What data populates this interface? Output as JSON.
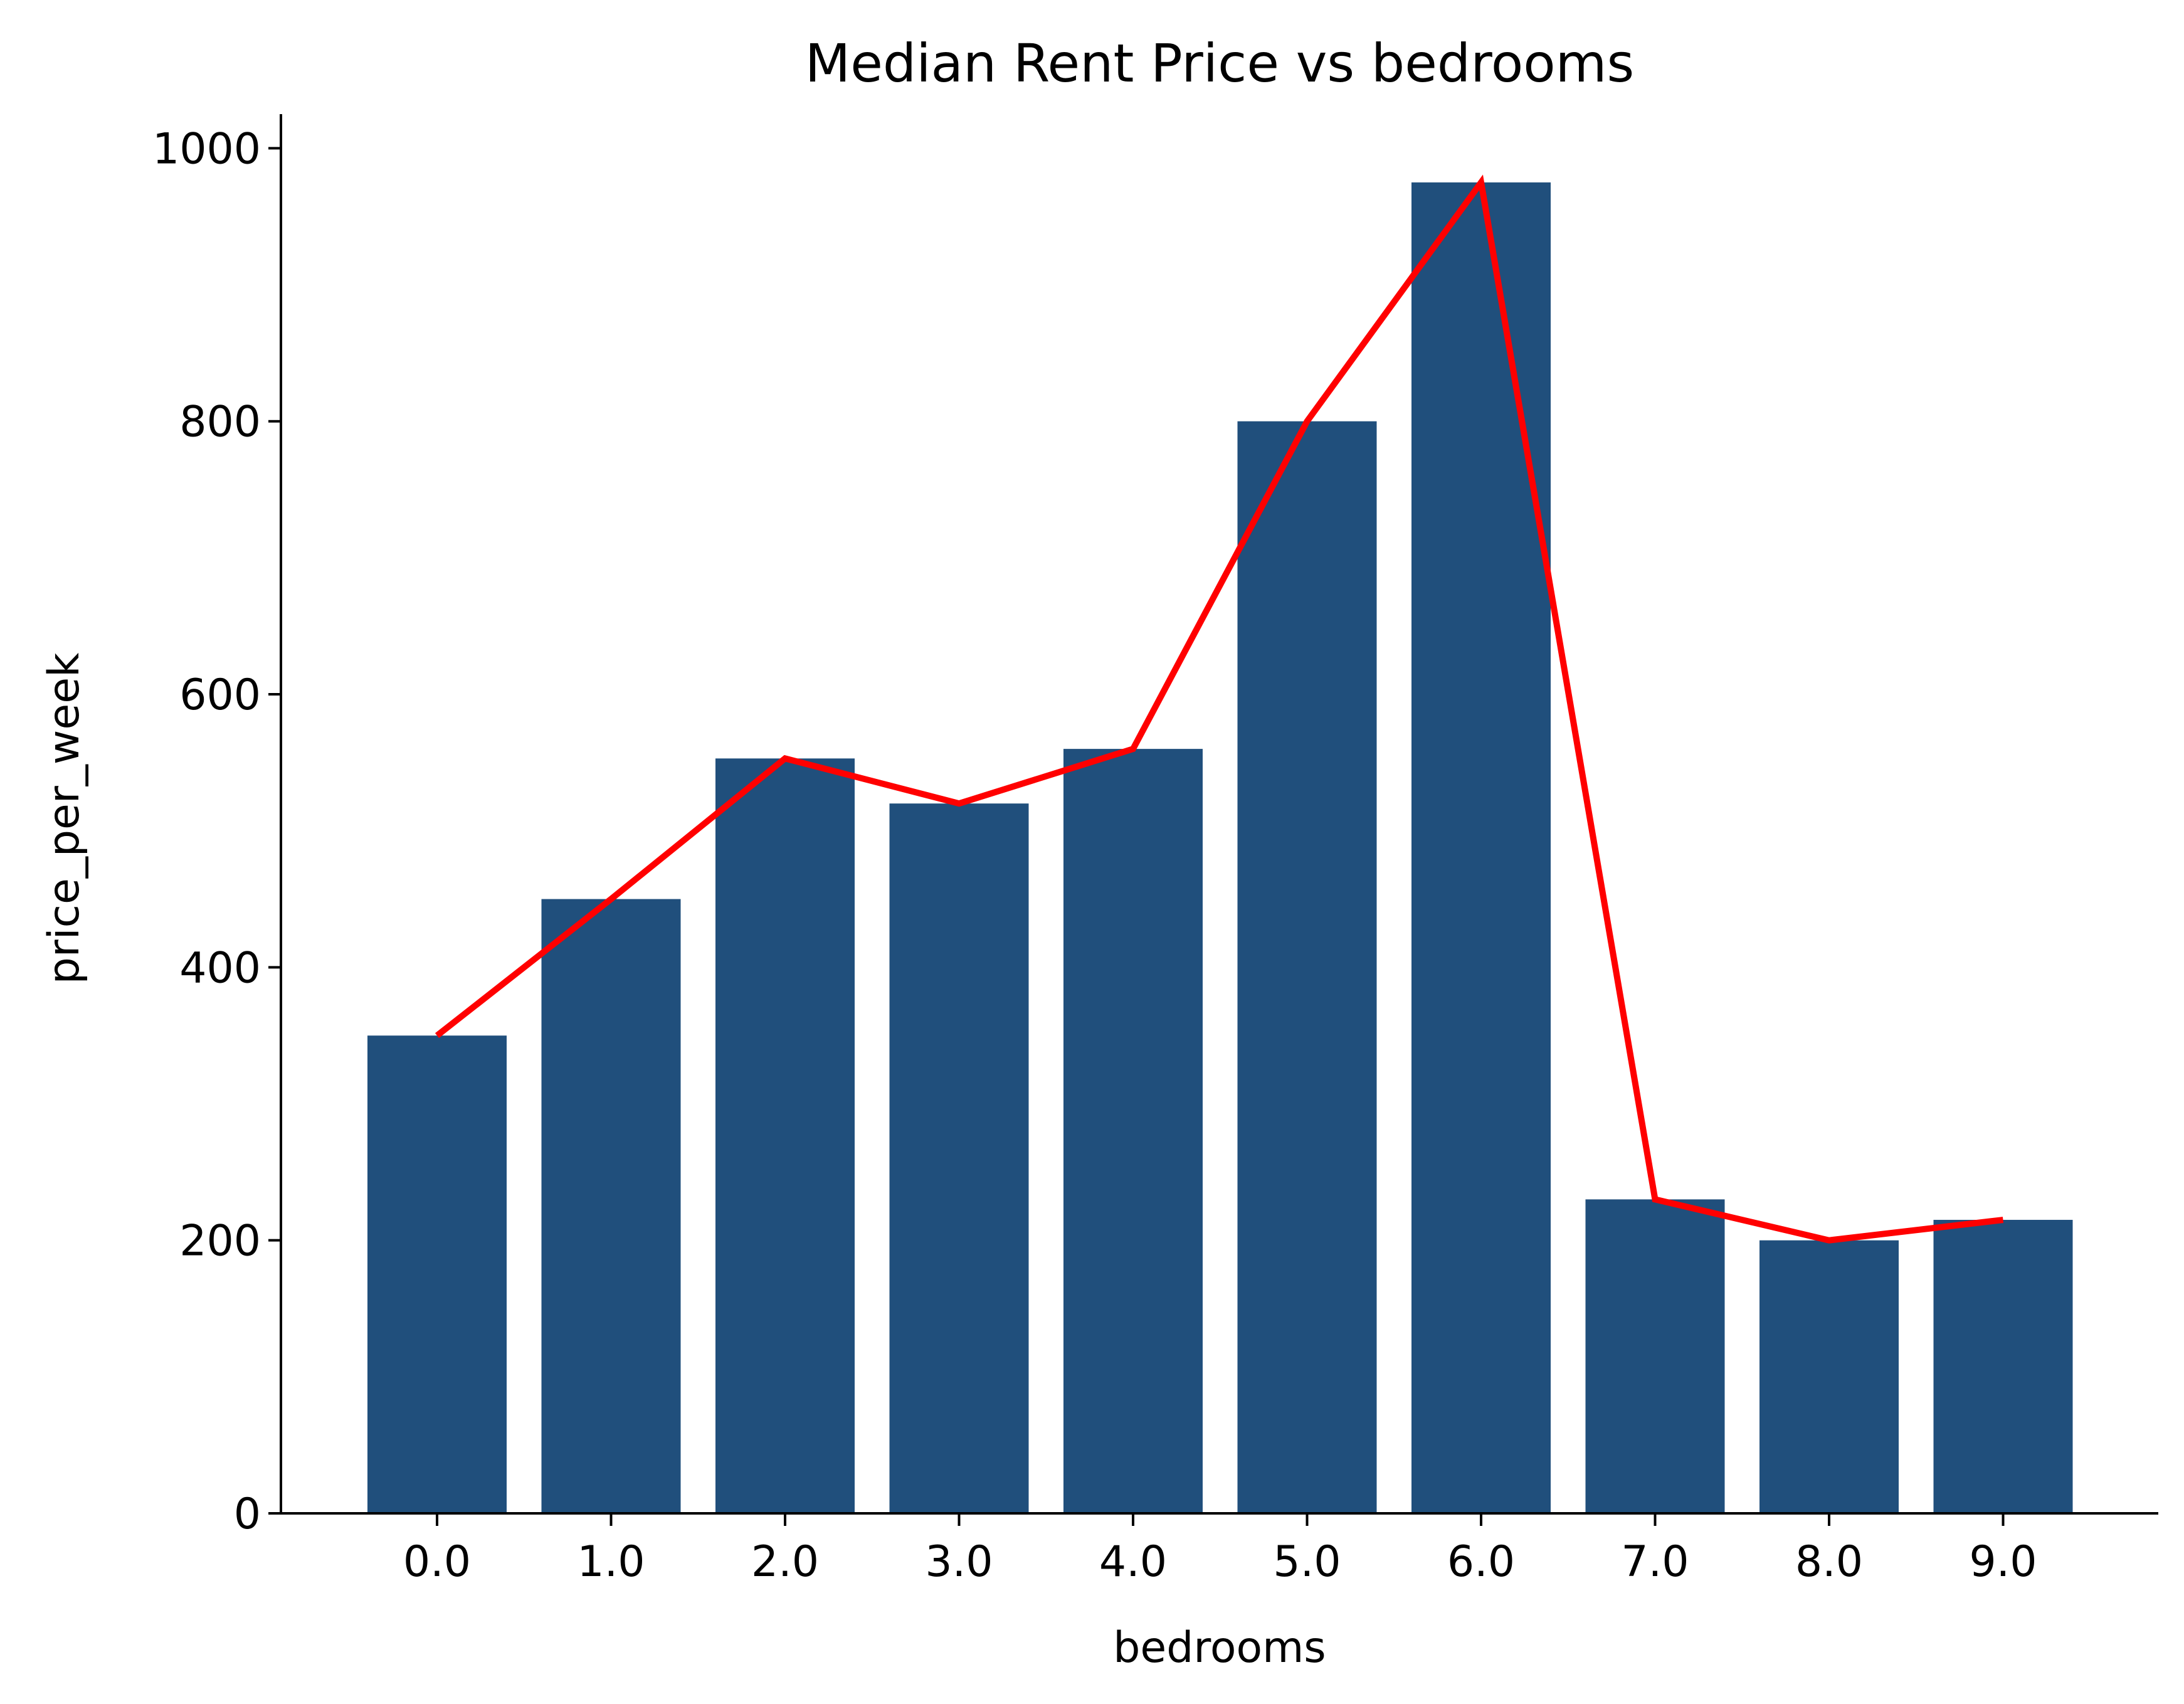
{
  "chart_data": {
    "type": "bar",
    "title": "Median Rent Price vs bedrooms",
    "xlabel": "bedrooms",
    "ylabel": "price_per_week",
    "categories": [
      "0.0",
      "1.0",
      "2.0",
      "3.0",
      "4.0",
      "5.0",
      "6.0",
      "7.0",
      "8.0",
      "9.0"
    ],
    "values": [
      350,
      450,
      553,
      520,
      560,
      800,
      975,
      230,
      200,
      215
    ],
    "line_values": [
      350,
      450,
      553,
      520,
      560,
      800,
      975,
      230,
      200,
      215
    ],
    "yticks": [
      0,
      200,
      400,
      600,
      800,
      1000
    ],
    "ylim": [
      0,
      1025
    ],
    "grid": false,
    "legend": "none",
    "colors": {
      "bar": "#204f7c",
      "line": "#ff0000"
    }
  }
}
